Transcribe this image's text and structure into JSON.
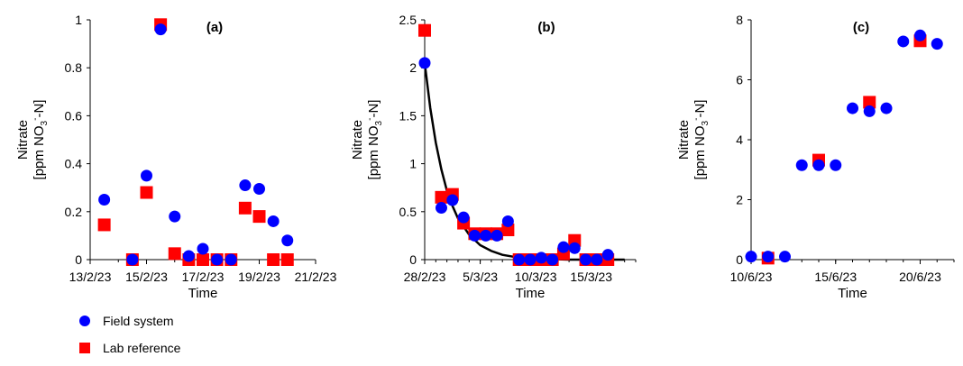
{
  "colors": {
    "field": "#0000ff",
    "lab": "#ff0000",
    "fit": "#000000"
  },
  "legend": {
    "field_label": "Field system",
    "lab_label": "Lab reference"
  },
  "chart_data": [
    {
      "type": "scatter",
      "title": "(a)",
      "xlabel": "Time",
      "ylabel_line1": "Nitrate",
      "ylabel_prefix": "[ppm NO",
      "ylabel_sub": "3",
      "ylabel_sup": "-",
      "ylabel_suffix": "-N]",
      "x_ticks": [
        {
          "v": "2023-02-13",
          "label": "13/2/23"
        },
        {
          "v": "2023-02-15",
          "label": "15/2/23"
        },
        {
          "v": "2023-02-17",
          "label": "17/2/23"
        },
        {
          "v": "2023-02-19",
          "label": "19/2/23"
        },
        {
          "v": "2023-02-21",
          "label": "21/2/23"
        }
      ],
      "xlim": [
        "2023-02-13",
        "2023-02-21"
      ],
      "y_ticks": [
        {
          "v": 0,
          "label": "0"
        },
        {
          "v": 0.2,
          "label": "0.2"
        },
        {
          "v": 0.4,
          "label": "0.4"
        },
        {
          "v": 0.6,
          "label": "0.6"
        },
        {
          "v": 0.8,
          "label": "0.8"
        },
        {
          "v": 1,
          "label": "1"
        }
      ],
      "ylim": [
        0,
        1
      ],
      "series": [
        {
          "key": "field",
          "marker": "circle",
          "points": [
            {
              "x": "2023-02-13 12:00",
              "y": 0.25
            },
            {
              "x": "2023-02-14 12:00",
              "y": 0.0
            },
            {
              "x": "2023-02-15 00:00",
              "y": 0.35
            },
            {
              "x": "2023-02-15 12:00",
              "y": 0.96
            },
            {
              "x": "2023-02-16 00:00",
              "y": 0.18
            },
            {
              "x": "2023-02-16 12:00",
              "y": 0.015
            },
            {
              "x": "2023-02-17 00:00",
              "y": 0.045
            },
            {
              "x": "2023-02-17 12:00",
              "y": 0.0
            },
            {
              "x": "2023-02-18 00:00",
              "y": 0.0
            },
            {
              "x": "2023-02-18 12:00",
              "y": 0.31
            },
            {
              "x": "2023-02-19 00:00",
              "y": 0.295
            },
            {
              "x": "2023-02-19 12:00",
              "y": 0.16
            },
            {
              "x": "2023-02-20 00:00",
              "y": 0.08
            }
          ]
        },
        {
          "key": "lab",
          "marker": "square",
          "points": [
            {
              "x": "2023-02-13 12:00",
              "y": 0.145
            },
            {
              "x": "2023-02-14 12:00",
              "y": 0.0
            },
            {
              "x": "2023-02-15 00:00",
              "y": 0.28
            },
            {
              "x": "2023-02-15 12:00",
              "y": 0.98
            },
            {
              "x": "2023-02-16 00:00",
              "y": 0.025
            },
            {
              "x": "2023-02-16 12:00",
              "y": 0.0
            },
            {
              "x": "2023-02-17 00:00",
              "y": 0.0
            },
            {
              "x": "2023-02-17 12:00",
              "y": 0.0
            },
            {
              "x": "2023-02-18 00:00",
              "y": 0.0
            },
            {
              "x": "2023-02-18 12:00",
              "y": 0.215
            },
            {
              "x": "2023-02-19 00:00",
              "y": 0.18
            },
            {
              "x": "2023-02-19 12:00",
              "y": 0.0
            },
            {
              "x": "2023-02-20 00:00",
              "y": 0.0
            }
          ]
        }
      ]
    },
    {
      "type": "scatter",
      "title": "(b)",
      "xlabel": "Time",
      "ylabel_line1": "Nitrate",
      "ylabel_prefix": "[ppm NO",
      "ylabel_sub": "3",
      "ylabel_sup": "-",
      "ylabel_suffix": "-N]",
      "x_ticks": [
        {
          "v": "2023-02-28",
          "label": "28/2/23"
        },
        {
          "v": "2023-03-05",
          "label": "5/3/23"
        },
        {
          "v": "2023-03-10",
          "label": "10/3/23"
        },
        {
          "v": "2023-03-15",
          "label": "15/3/23"
        }
      ],
      "xlim": [
        "2023-02-28",
        "2023-03-19"
      ],
      "y_ticks": [
        {
          "v": 0,
          "label": "0"
        },
        {
          "v": 0.5,
          "label": "0.5"
        },
        {
          "v": 1,
          "label": "1"
        },
        {
          "v": 1.5,
          "label": "1.5"
        },
        {
          "v": 2,
          "label": "2"
        },
        {
          "v": 2.5,
          "label": "2.5"
        }
      ],
      "ylim": [
        0,
        2.5
      ],
      "fit_curve": [
        {
          "x": "2023-02-28 00:00",
          "y": 2.05
        },
        {
          "x": "2023-02-28 12:00",
          "y": 1.58
        },
        {
          "x": "2023-03-01 00:00",
          "y": 1.22
        },
        {
          "x": "2023-03-01 12:00",
          "y": 0.94
        },
        {
          "x": "2023-03-02 00:00",
          "y": 0.72
        },
        {
          "x": "2023-03-02 12:00",
          "y": 0.56
        },
        {
          "x": "2023-03-03 00:00",
          "y": 0.43
        },
        {
          "x": "2023-03-04 00:00",
          "y": 0.26
        },
        {
          "x": "2023-03-05 00:00",
          "y": 0.15
        },
        {
          "x": "2023-03-06 00:00",
          "y": 0.09
        },
        {
          "x": "2023-03-07 00:00",
          "y": 0.05
        },
        {
          "x": "2023-03-08 00:00",
          "y": 0.03
        },
        {
          "x": "2023-03-10 00:00",
          "y": 0.01
        },
        {
          "x": "2023-03-13 00:00",
          "y": 0.0
        },
        {
          "x": "2023-03-18 00:00",
          "y": 0.0
        }
      ],
      "series": [
        {
          "key": "field",
          "marker": "circle",
          "points": [
            {
              "x": "2023-02-28 00:00",
              "y": 2.05
            },
            {
              "x": "2023-03-01 12:00",
              "y": 0.54
            },
            {
              "x": "2023-03-02 12:00",
              "y": 0.62
            },
            {
              "x": "2023-03-03 12:00",
              "y": 0.44
            },
            {
              "x": "2023-03-04 12:00",
              "y": 0.25
            },
            {
              "x": "2023-03-05 12:00",
              "y": 0.25
            },
            {
              "x": "2023-03-06 12:00",
              "y": 0.25
            },
            {
              "x": "2023-03-07 12:00",
              "y": 0.4
            },
            {
              "x": "2023-03-08 12:00",
              "y": 0.0
            },
            {
              "x": "2023-03-09 12:00",
              "y": 0.0
            },
            {
              "x": "2023-03-10 12:00",
              "y": 0.02
            },
            {
              "x": "2023-03-11 12:00",
              "y": 0.0
            },
            {
              "x": "2023-03-12 12:00",
              "y": 0.13
            },
            {
              "x": "2023-03-13 12:00",
              "y": 0.12
            },
            {
              "x": "2023-03-14 12:00",
              "y": 0.0
            },
            {
              "x": "2023-03-15 12:00",
              "y": 0.0
            },
            {
              "x": "2023-03-16 12:00",
              "y": 0.05
            }
          ]
        },
        {
          "key": "lab",
          "marker": "square",
          "points": [
            {
              "x": "2023-02-28 00:00",
              "y": 2.39
            },
            {
              "x": "2023-03-01 12:00",
              "y": 0.65
            },
            {
              "x": "2023-03-02 12:00",
              "y": 0.68
            },
            {
              "x": "2023-03-03 12:00",
              "y": 0.38
            },
            {
              "x": "2023-03-04 12:00",
              "y": 0.27
            },
            {
              "x": "2023-03-05 12:00",
              "y": 0.27
            },
            {
              "x": "2023-03-06 12:00",
              "y": 0.27
            },
            {
              "x": "2023-03-07 12:00",
              "y": 0.31
            },
            {
              "x": "2023-03-08 12:00",
              "y": 0.0
            },
            {
              "x": "2023-03-09 12:00",
              "y": 0.0
            },
            {
              "x": "2023-03-10 12:00",
              "y": 0.0
            },
            {
              "x": "2023-03-11 12:00",
              "y": 0.0
            },
            {
              "x": "2023-03-12 12:00",
              "y": 0.06
            },
            {
              "x": "2023-03-13 12:00",
              "y": 0.2
            },
            {
              "x": "2023-03-14 12:00",
              "y": 0.0
            },
            {
              "x": "2023-03-15 12:00",
              "y": 0.0
            },
            {
              "x": "2023-03-16 12:00",
              "y": 0.0
            }
          ]
        }
      ]
    },
    {
      "type": "scatter",
      "title": "(c)",
      "xlabel": "Time",
      "ylabel_line1": "Nitrate",
      "ylabel_prefix": "[ppm NO",
      "ylabel_sub": "3",
      "ylabel_sup": "-",
      "ylabel_suffix": "-N]",
      "x_ticks": [
        {
          "v": "2023-06-10",
          "label": "10/6/23"
        },
        {
          "v": "2023-06-15",
          "label": "15/6/23"
        },
        {
          "v": "2023-06-20",
          "label": "20/6/23"
        }
      ],
      "xlim": [
        "2023-06-10",
        "2023-06-22"
      ],
      "y_ticks": [
        {
          "v": 0,
          "label": "0"
        },
        {
          "v": 2,
          "label": "2"
        },
        {
          "v": 4,
          "label": "4"
        },
        {
          "v": 6,
          "label": "6"
        },
        {
          "v": 8,
          "label": "8"
        }
      ],
      "ylim": [
        0,
        8
      ],
      "series": [
        {
          "key": "field",
          "marker": "circle",
          "points": [
            {
              "x": "2023-06-10 00:00",
              "y": 0.1
            },
            {
              "x": "2023-06-11 00:00",
              "y": 0.1
            },
            {
              "x": "2023-06-12 00:00",
              "y": 0.1
            },
            {
              "x": "2023-06-13 00:00",
              "y": 3.15
            },
            {
              "x": "2023-06-14 00:00",
              "y": 3.15
            },
            {
              "x": "2023-06-15 00:00",
              "y": 3.15
            },
            {
              "x": "2023-06-16 00:00",
              "y": 5.05
            },
            {
              "x": "2023-06-17 00:00",
              "y": 4.95
            },
            {
              "x": "2023-06-18 00:00",
              "y": 5.05
            },
            {
              "x": "2023-06-19 00:00",
              "y": 7.28
            },
            {
              "x": "2023-06-20 00:00",
              "y": 7.48
            },
            {
              "x": "2023-06-21 00:00",
              "y": 7.2
            }
          ]
        },
        {
          "key": "lab",
          "marker": "square",
          "points": [
            {
              "x": "2023-06-11 00:00",
              "y": 0.05
            },
            {
              "x": "2023-06-14 00:00",
              "y": 3.32
            },
            {
              "x": "2023-06-17 00:00",
              "y": 5.25
            },
            {
              "x": "2023-06-20 00:00",
              "y": 7.3
            }
          ]
        }
      ]
    }
  ]
}
